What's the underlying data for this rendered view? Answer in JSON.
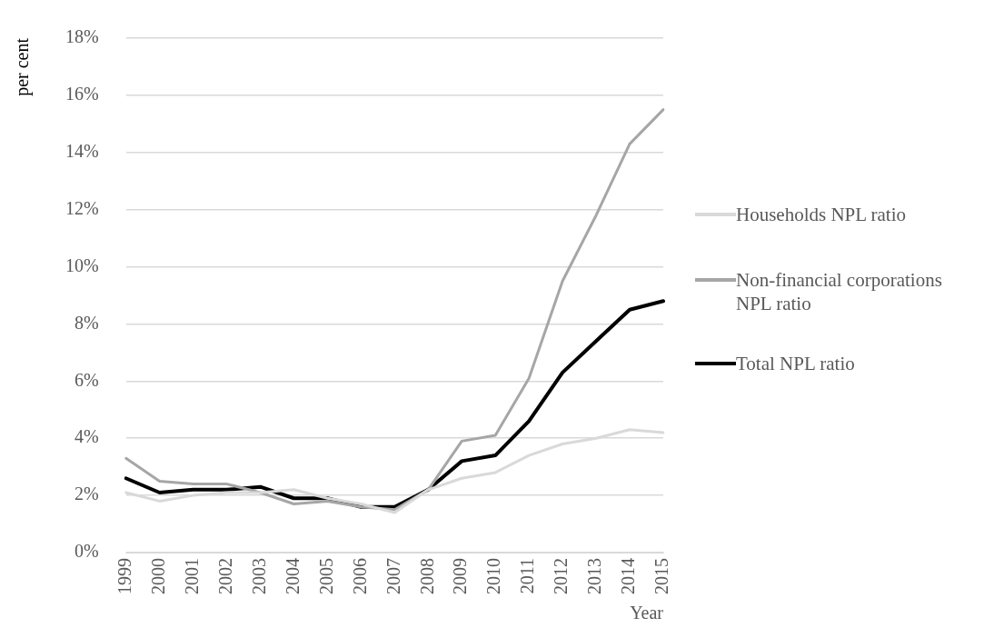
{
  "chart_data": {
    "type": "line",
    "xlabel": "Year",
    "ylabel": "per cent",
    "categories": [
      "1999",
      "2000",
      "2001",
      "2002",
      "2003",
      "2004",
      "2005",
      "2006",
      "2007",
      "2008",
      "2009",
      "2010",
      "2011",
      "2012",
      "2013",
      "2014",
      "2015"
    ],
    "series": [
      {
        "name": "Households NPL ratio",
        "color": "#d9d9d9",
        "values": [
          2.1,
          1.8,
          2.0,
          2.1,
          2.1,
          2.2,
          1.9,
          1.7,
          1.4,
          2.2,
          2.6,
          2.8,
          3.4,
          3.8,
          4.0,
          4.3,
          4.2
        ]
      },
      {
        "name": "Non-financial corporations NPL ratio",
        "color": "#a6a6a6",
        "values": [
          3.3,
          2.5,
          2.4,
          2.4,
          2.1,
          1.7,
          1.8,
          1.6,
          1.5,
          2.2,
          3.9,
          4.1,
          6.1,
          9.5,
          11.8,
          14.3,
          15.5
        ]
      },
      {
        "name": "Total NPL ratio",
        "color": "#000000",
        "values": [
          2.6,
          2.1,
          2.2,
          2.2,
          2.3,
          1.9,
          1.9,
          1.6,
          1.6,
          2.2,
          3.2,
          3.4,
          4.6,
          6.3,
          7.4,
          8.5,
          8.8
        ]
      }
    ],
    "ylim": [
      0,
      18
    ],
    "yticks": [
      {
        "value": 0,
        "label": "0%"
      },
      {
        "value": 2,
        "label": "2%"
      },
      {
        "value": 4,
        "label": "4%"
      },
      {
        "value": 6,
        "label": "6%"
      },
      {
        "value": 8,
        "label": "8%"
      },
      {
        "value": 10,
        "label": "10%"
      },
      {
        "value": 12,
        "label": "12%"
      },
      {
        "value": 14,
        "label": "14%"
      },
      {
        "value": 16,
        "label": "16%"
      },
      {
        "value": 18,
        "label": "18%"
      }
    ],
    "grid": "y",
    "legend": "right",
    "marker": "none",
    "line_style": "solid"
  }
}
